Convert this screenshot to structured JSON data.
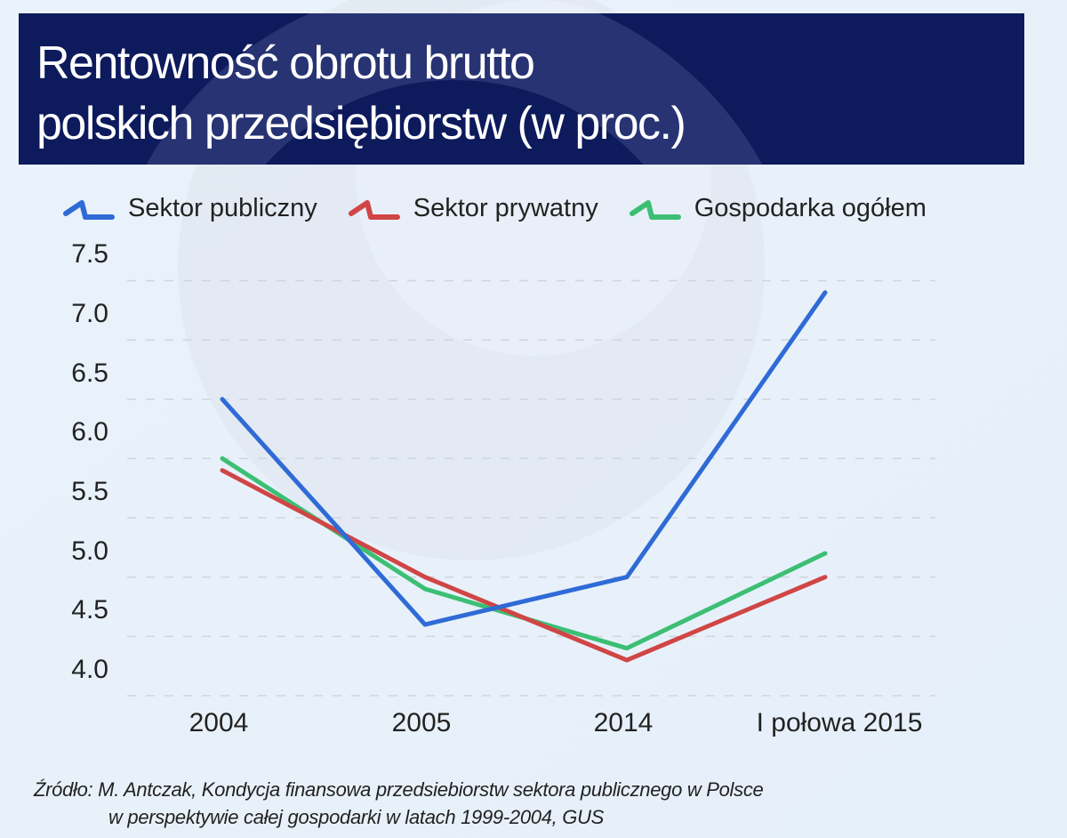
{
  "header": {
    "title_line1": "Rentowność obrotu brutto",
    "title_line2": "polskich przedsiębiorstw",
    "title_unit": "(w proc.)"
  },
  "legend": [
    {
      "label": "Sektor publiczny",
      "color": "#2f6bd6",
      "icon": "line-zigzag-icon"
    },
    {
      "label": "Sektor prywatny",
      "color": "#d04545",
      "icon": "line-zigzag-icon"
    },
    {
      "label": "Gospodarka ogółem",
      "color": "#3cbf74",
      "icon": "line-zigzag-icon"
    }
  ],
  "source": {
    "line1": "Źródło: M. Antczak, Kondycja finansowa przedsiebiorstw sektora publicznego w Polsce",
    "line2": "w perspektywie całej gospodarki w latach 1999-2004, GUS"
  },
  "chart_data": {
    "type": "line",
    "title": "Rentowność obrotu brutto polskich przedsiębiorstw (w proc.)",
    "xlabel": "",
    "ylabel": "",
    "categories": [
      "2004",
      "2005",
      "2014",
      "I połowa 2015"
    ],
    "series": [
      {
        "name": "Sektor publiczny",
        "color": "#2f6bd6",
        "values": [
          6.5,
          4.6,
          5.0,
          7.4
        ]
      },
      {
        "name": "Sektor prywatny",
        "color": "#d04545",
        "values": [
          5.9,
          5.0,
          4.3,
          5.0
        ]
      },
      {
        "name": "Gospodarka ogółem",
        "color": "#3cbf74",
        "values": [
          6.0,
          4.9,
          4.4,
          5.2
        ]
      }
    ],
    "yticks": [
      "4.0",
      "4.5",
      "5.0",
      "5.5",
      "6.0",
      "6.5",
      "7.0",
      "7.5"
    ],
    "ylim": [
      4.0,
      7.5
    ],
    "grid": "horizontal dashed",
    "legend_position": "top"
  }
}
